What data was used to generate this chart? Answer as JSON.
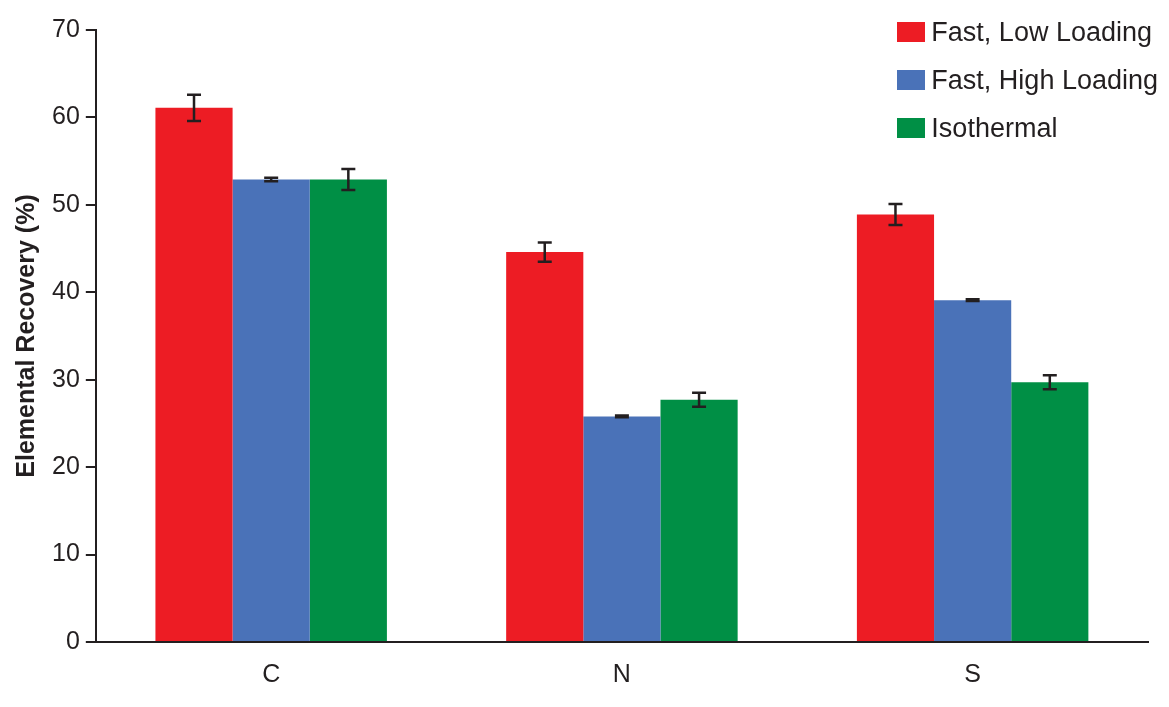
{
  "chart_data": {
    "type": "bar",
    "ylabel": "Elemental Recovery (%)",
    "categories": [
      "C",
      "N",
      "S"
    ],
    "series": [
      {
        "name": "Fast, Low Loading",
        "color": "#ed1c24",
        "values": [
          61.1,
          44.6,
          48.9
        ],
        "errors": [
          1.5,
          1.1,
          1.2
        ]
      },
      {
        "name": "Fast, High Loading",
        "color": "#4a72b8",
        "values": [
          52.9,
          25.8,
          39.1
        ],
        "errors": [
          0.2,
          0.1,
          0.1
        ]
      },
      {
        "name": "Isothermal",
        "color": "#008f45",
        "values": [
          52.9,
          27.7,
          29.7
        ],
        "errors": [
          1.2,
          0.8,
          0.8
        ]
      }
    ],
    "ylim": [
      0,
      70
    ],
    "yticks": [
      0,
      10,
      20,
      30,
      40,
      50,
      60,
      70
    ],
    "grid": false,
    "legend": "top right"
  }
}
